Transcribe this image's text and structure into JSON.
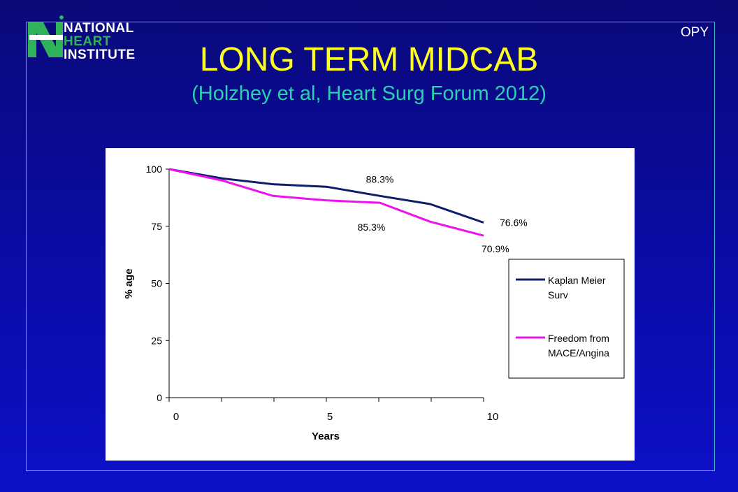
{
  "slide": {
    "logo_lines": [
      "NATIONAL",
      "HEART",
      "INSTITUTE"
    ],
    "corner_tag": "OPY",
    "title": "LONG TERM MIDCAB",
    "subtitle": "(Holzhey et al, Heart Surg Forum 2012)"
  },
  "colors": {
    "background": "#0b0ba0",
    "title": "#ffff22",
    "subtitle": "#2ad0b0",
    "series_survival": "#0d1e6b",
    "series_freedom": "#ee11ee"
  },
  "chart_data": {
    "type": "line",
    "xlabel": "Years",
    "ylabel": "% age",
    "xlim": [
      0,
      10
    ],
    "ylim": [
      0,
      100
    ],
    "x_ticks": [
      0,
      5,
      10
    ],
    "y_ticks": [
      0,
      25,
      50,
      75,
      100
    ],
    "legend_position": "right",
    "series": [
      {
        "name": "Kaplan Meier Surv",
        "color": "#0d1e6b",
        "x": [
          0,
          1.7,
          3.3,
          5.0,
          6.7,
          8.3,
          10
        ],
        "values": [
          100,
          95.9,
          93.4,
          92.3,
          88.3,
          84.7,
          76.6
        ]
      },
      {
        "name": "Freedom from MACE/Angina",
        "color": "#ee11ee",
        "x": [
          0,
          1.7,
          3.3,
          5.0,
          6.7,
          8.3,
          10
        ],
        "values": [
          100,
          95.0,
          88.3,
          86.3,
          85.3,
          77.0,
          70.9
        ]
      }
    ],
    "annotations": [
      {
        "text": "88.3%",
        "x": 6.7,
        "y": 88.3,
        "series": 0
      },
      {
        "text": "85.3%",
        "x": 6.7,
        "y": 85.3,
        "series": 1
      },
      {
        "text": "76.6%",
        "x": 10,
        "y": 76.6,
        "series": 0
      },
      {
        "text": "70.9%",
        "x": 10,
        "y": 70.9,
        "series": 1
      }
    ]
  }
}
